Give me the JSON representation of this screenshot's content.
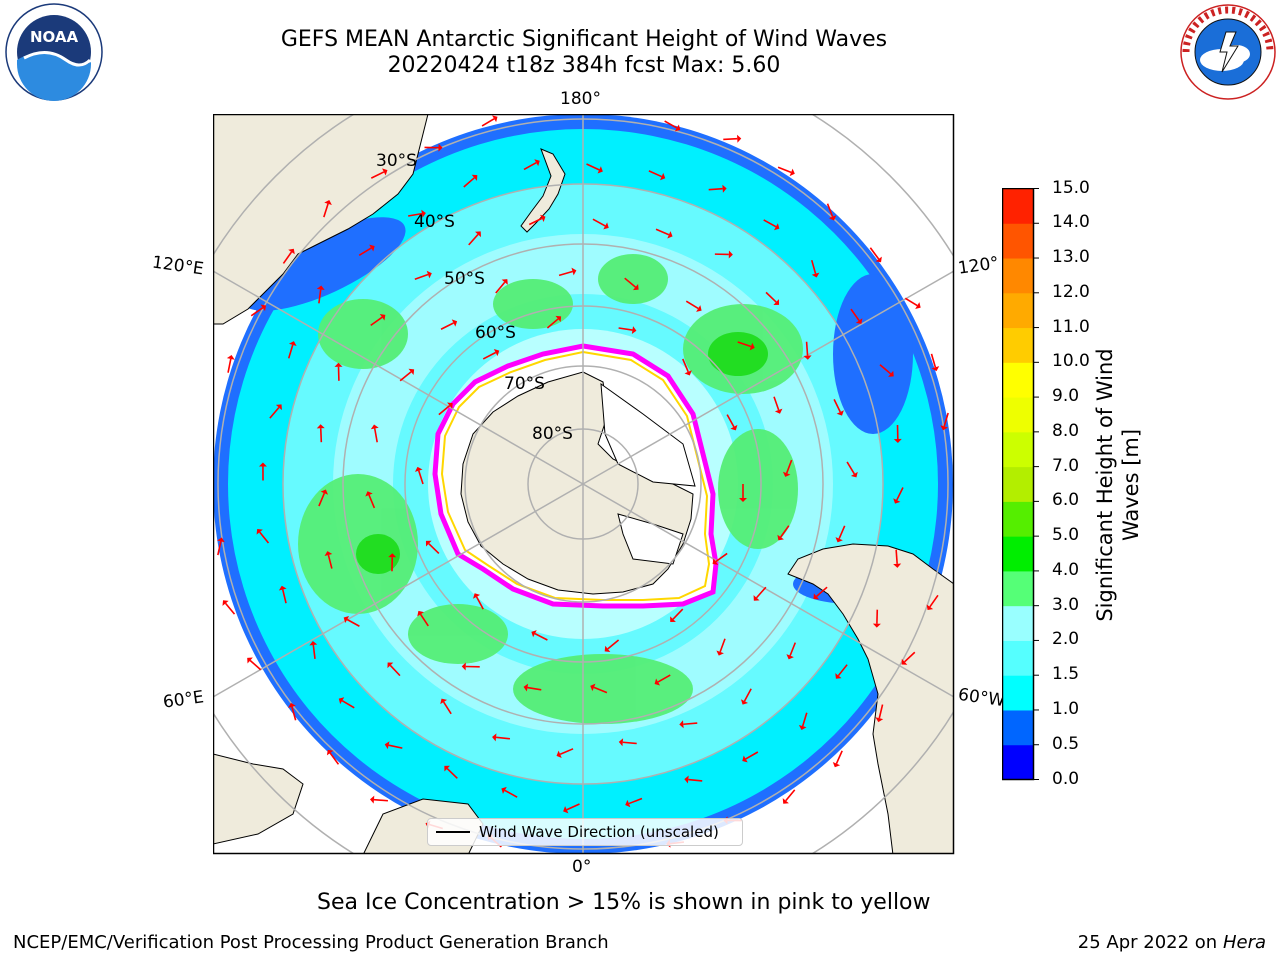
{
  "header": {
    "title_line1": "GEFS MEAN Antarctic Significant Height of Wind Waves",
    "title_line2": "20220424 t18z 384h fcst   Max: 5.60"
  },
  "logos": {
    "left": "noaa-logo",
    "right": "national-weather-service-logo"
  },
  "map": {
    "projection": "south-polar-stereographic",
    "longitude_labels": {
      "top": "180°",
      "bottom": "0°",
      "left_upper": "120°E",
      "left_lower": "60°E",
      "right_upper": "120°",
      "right_lower": "60°W"
    },
    "latitude_labels": [
      "30°S",
      "40°S",
      "50°S",
      "60°S",
      "70°S",
      "80°S"
    ],
    "legend": {
      "label": "Wind Wave Direction (unscaled)"
    },
    "arrow_color": "#ff0000",
    "land_color": "#efebdc",
    "ice_edge_colors": [
      "#ff00ff",
      "#ffd700"
    ]
  },
  "colorbar": {
    "label_line1": "Significant Height of Wind",
    "label_line2": "Waves [m]",
    "ticks": [
      "0.0",
      "0.5",
      "1.0",
      "1.5",
      "2.0",
      "3.0",
      "4.0",
      "5.0",
      "6.0",
      "7.0",
      "8.0",
      "9.0",
      "10.0",
      "11.0",
      "12.0",
      "13.0",
      "14.0",
      "15.0"
    ],
    "colors": [
      "#0000ff",
      "#0066ff",
      "#00ffff",
      "#55ffff",
      "#99ffff",
      "#55ff77",
      "#00ee00",
      "#55ee00",
      "#b3ee00",
      "#ccff00",
      "#eeff00",
      "#ffff00",
      "#ffcc00",
      "#ffaa00",
      "#ff8800",
      "#ff5500",
      "#ff2200"
    ]
  },
  "note": "Sea Ice Concentration > 15% is shown in pink to yellow",
  "footer": {
    "left": "NCEP/EMC/Verification Post Processing Product Generation Branch",
    "right_date": "25 Apr 2022 on ",
    "right_host": "Hera"
  }
}
